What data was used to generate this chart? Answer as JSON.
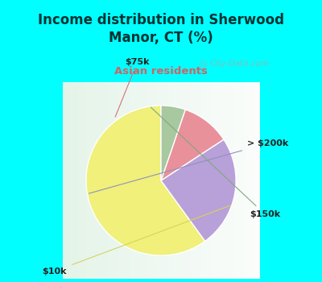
{
  "title": "Income distribution in Sherwood\nManor, CT (%)",
  "subtitle": "Asian residents",
  "title_color": "#003333",
  "subtitle_color": "#cc6666",
  "background_color": "#00ffff",
  "chart_bg_color": "#e8f5f0",
  "slices": [
    {
      "label": "$10k",
      "value": 57,
      "color": "#f0f07a"
    },
    {
      "label": "> $200k",
      "value": 23,
      "color": "#b8a0d8"
    },
    {
      "label": "$75k",
      "value": 10,
      "color": "#e8919a"
    },
    {
      "label": "$150k",
      "value": 5,
      "color": "#a8c8a0"
    }
  ],
  "start_angle": 90,
  "watermark": "City-Data.com"
}
